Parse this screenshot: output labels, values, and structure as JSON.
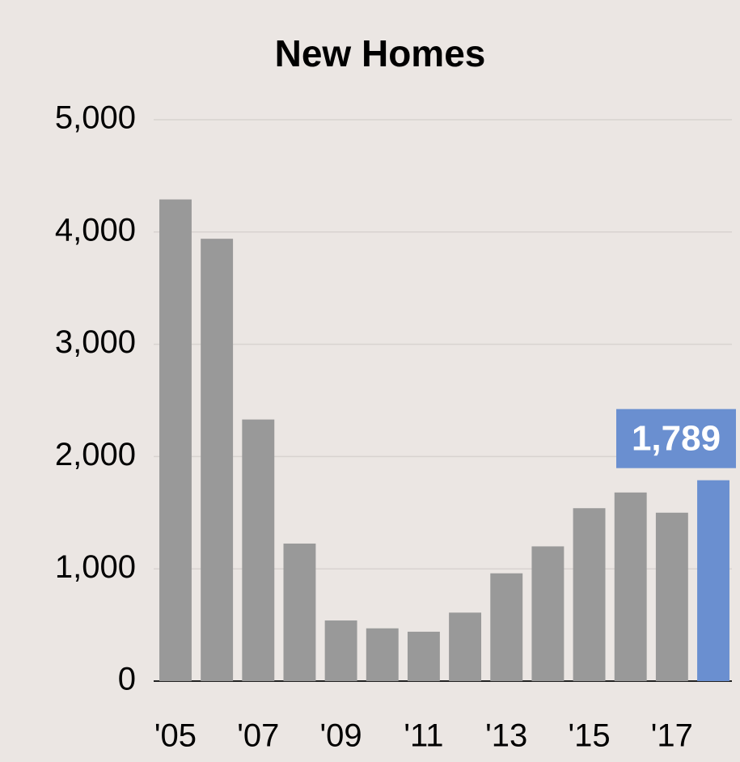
{
  "chart_data": {
    "type": "bar",
    "title": "New Homes",
    "categories": [
      "'05",
      null,
      "'07",
      null,
      "'09",
      null,
      "'11",
      null,
      "'13",
      null,
      "'15",
      null,
      "'17",
      null
    ],
    "values": [
      4290,
      3940,
      2330,
      1225,
      540,
      470,
      440,
      610,
      960,
      1200,
      1540,
      1680,
      1500,
      1789
    ],
    "value_labels": [
      null,
      null,
      null,
      null,
      null,
      null,
      null,
      null,
      null,
      null,
      null,
      null,
      null,
      "1,789"
    ],
    "colors": [
      "#999999",
      "#999999",
      "#999999",
      "#999999",
      "#999999",
      "#999999",
      "#999999",
      "#999999",
      "#999999",
      "#999999",
      "#999999",
      "#999999",
      "#999999",
      "#6a8fd0"
    ],
    "ylim": [
      0,
      5000
    ],
    "yticks": [
      0,
      {
        "value": 1000,
        "label": "1,000"
      },
      {
        "value": 2000,
        "label": "2,000"
      },
      {
        "value": 3000,
        "label": "3,000"
      },
      {
        "value": 4000,
        "label": "4,000"
      },
      {
        "value": 5000,
        "label": "5,000"
      }
    ],
    "grid": true
  }
}
